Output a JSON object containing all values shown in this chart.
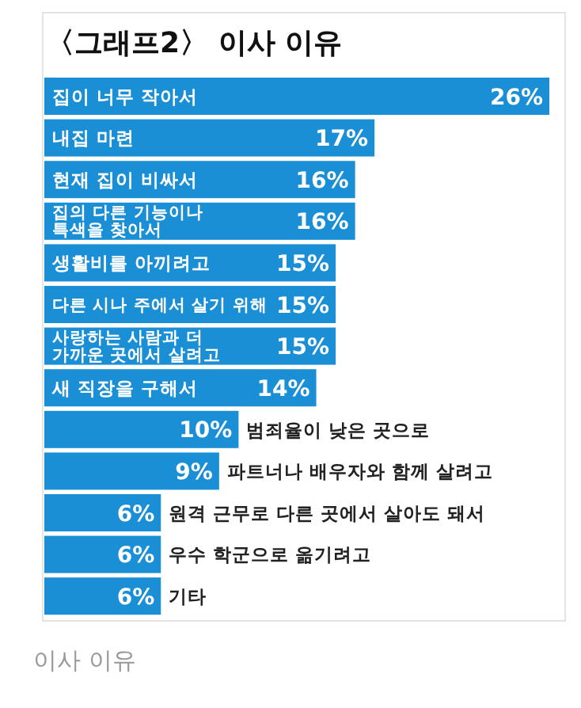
{
  "chart_data": {
    "type": "bar",
    "orientation": "horizontal",
    "title": "〈그래프2〉 이사 이유",
    "categories": [
      "집이 너무 작아서",
      "내집 마련",
      "현재 집이 비싸서",
      "집의 다른 기능이나 특색을 찾아서",
      "생활비를 아끼려고",
      "다른 시나 주에서 살기 위해",
      "사랑하는 사람과 더 가까운 곳에서 살려고",
      "새 직장을 구해서",
      "범죄율이 낮은 곳으로",
      "파트너나 배우자와 함께 살려고",
      "원격 근무로 다른 곳에서 살아도 돼서",
      "우수 학군으로 옮기려고",
      "기타"
    ],
    "values": [
      26,
      17,
      16,
      16,
      15,
      15,
      15,
      14,
      10,
      9,
      6,
      6,
      6
    ],
    "value_labels": [
      "26%",
      "17%",
      "16%",
      "16%",
      "15%",
      "15%",
      "15%",
      "14%",
      "10%",
      "9%",
      "6%",
      "6%",
      "6%"
    ],
    "color": "#1b8fd6",
    "annotations": [
      "이사 이유"
    ]
  }
}
